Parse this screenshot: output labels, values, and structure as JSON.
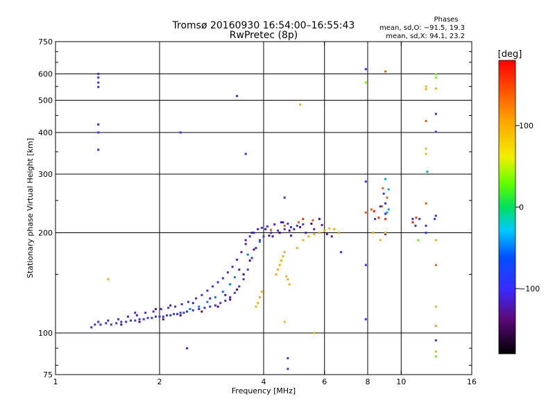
{
  "chart_data": {
    "type": "scatter",
    "title": "Tromsø 20160930 16:54:00–16:55:43",
    "subtitle": "RwPretec (8p)",
    "xlabel": "Frequency [MHz]",
    "ylabel": "Stationary phase Virtual Height [km]",
    "x_scale": "log2",
    "y_scale": "log",
    "xlim": [
      1,
      16
    ],
    "ylim": [
      75,
      750
    ],
    "x_ticks": [
      {
        "value": 1,
        "label": "1"
      },
      {
        "value": 2,
        "label": "2"
      },
      {
        "value": 4,
        "label": "4"
      },
      {
        "value": 6,
        "label": "6"
      },
      {
        "value": 8,
        "label": "8"
      },
      {
        "value": 10,
        "label": "10"
      },
      {
        "value": 16,
        "label": "16"
      }
    ],
    "y_ticks": [
      {
        "value": 75,
        "label": "75"
      },
      {
        "value": 100,
        "label": "100"
      },
      {
        "value": 200,
        "label": "200"
      },
      {
        "value": 300,
        "label": "300"
      },
      {
        "value": 400,
        "label": "400"
      },
      {
        "value": 500,
        "label": "500"
      },
      {
        "value": 600,
        "label": "600"
      },
      {
        "value": 750,
        "label": "750"
      }
    ],
    "x_gridlines": [
      2,
      4,
      6,
      8,
      10
    ],
    "y_gridlines": [
      100,
      200,
      300,
      400,
      500,
      600
    ],
    "grid": true,
    "stats": {
      "heading": "Phases",
      "line_o": "mean, sd,O: −91.5, 19.3",
      "line_x": "mean, sd,X:  94.1, 23.2"
    },
    "colorbar": {
      "label": "[deg]",
      "range": [
        -180,
        180
      ],
      "ticks": [
        {
          "value": 100,
          "label": "100"
        },
        {
          "value": 0,
          "label": "0"
        },
        {
          "value": -100,
          "label": "−100"
        }
      ]
    },
    "series": [
      {
        "name": "lowband_O",
        "phase": -95,
        "points": [
          [
            1.27,
            104
          ],
          [
            1.3,
            106
          ],
          [
            1.35,
            106
          ],
          [
            1.4,
            107
          ],
          [
            1.45,
            106
          ],
          [
            1.5,
            107
          ],
          [
            1.55,
            108
          ],
          [
            1.6,
            108
          ],
          [
            1.65,
            109
          ],
          [
            1.7,
            109
          ],
          [
            1.75,
            110
          ],
          [
            1.8,
            110
          ],
          [
            1.85,
            111
          ],
          [
            1.9,
            111
          ],
          [
            1.95,
            112
          ],
          [
            2.0,
            112
          ],
          [
            2.05,
            112
          ],
          [
            2.1,
            113
          ],
          [
            2.15,
            113
          ],
          [
            2.2,
            114
          ],
          [
            2.25,
            114
          ],
          [
            2.3,
            115
          ],
          [
            2.35,
            115
          ],
          [
            2.4,
            116
          ],
          [
            2.5,
            117
          ],
          [
            2.6,
            118
          ],
          [
            2.7,
            119
          ],
          [
            2.8,
            120
          ],
          [
            2.9,
            121
          ],
          [
            3.0,
            123
          ],
          [
            3.1,
            125
          ],
          [
            3.2,
            128
          ],
          [
            3.3,
            132
          ],
          [
            3.4,
            138
          ],
          [
            3.5,
            145
          ],
          [
            3.6,
            155
          ],
          [
            3.7,
            168
          ],
          [
            3.8,
            180
          ],
          [
            3.9,
            190
          ],
          [
            4.0,
            195
          ],
          [
            4.2,
            200
          ],
          [
            4.4,
            203
          ],
          [
            4.6,
            205
          ],
          [
            4.8,
            208
          ],
          [
            5.0,
            210
          ],
          [
            5.2,
            212
          ]
        ]
      },
      {
        "name": "lowband_O_spread",
        "phase": -105,
        "points": [
          [
            1.33,
            108
          ],
          [
            1.42,
            109
          ],
          [
            1.52,
            110
          ],
          [
            1.62,
            112
          ],
          [
            1.72,
            113
          ],
          [
            1.82,
            115
          ],
          [
            1.92,
            116
          ],
          [
            2.02,
            118
          ],
          [
            2.12,
            119
          ],
          [
            2.22,
            120
          ],
          [
            2.32,
            122
          ],
          [
            2.42,
            124
          ],
          [
            2.55,
            127
          ],
          [
            2.65,
            130
          ],
          [
            2.75,
            134
          ],
          [
            2.85,
            138
          ],
          [
            2.95,
            142
          ],
          [
            3.05,
            146
          ],
          [
            3.15,
            152
          ],
          [
            3.25,
            158
          ],
          [
            3.35,
            166
          ],
          [
            3.45,
            175
          ],
          [
            3.55,
            185
          ],
          [
            3.65,
            195
          ],
          [
            3.75,
            200
          ],
          [
            3.85,
            205
          ],
          [
            3.95,
            207
          ],
          [
            4.1,
            209
          ],
          [
            4.3,
            212
          ],
          [
            4.5,
            215
          ],
          [
            4.7,
            213
          ],
          [
            4.9,
            205
          ]
        ]
      },
      {
        "name": "lowband_dark",
        "phase": -140,
        "points": [
          [
            1.55,
            106
          ],
          [
            1.75,
            108
          ],
          [
            2.05,
            110
          ],
          [
            2.3,
            113
          ],
          [
            2.65,
            116
          ],
          [
            2.95,
            120
          ],
          [
            3.2,
            126
          ],
          [
            3.35,
            135
          ],
          [
            3.5,
            150
          ],
          [
            3.65,
            165
          ],
          [
            3.75,
            178
          ],
          [
            4.15,
            196
          ],
          [
            4.45,
            200
          ],
          [
            4.75,
            203
          ],
          [
            5.1,
            208
          ],
          [
            5.5,
            213
          ],
          [
            5.8,
            220
          ]
        ]
      },
      {
        "name": "lowband_cyan",
        "phase": -50,
        "points": [
          [
            2.45,
            118
          ],
          [
            2.6,
            120
          ],
          [
            2.75,
            124
          ],
          [
            2.9,
            128
          ],
          [
            3.05,
            133
          ],
          [
            3.2,
            140
          ],
          [
            3.3,
            147
          ],
          [
            3.6,
            172
          ],
          [
            3.9,
            188
          ]
        ]
      },
      {
        "name": "xmode_yellow",
        "phase": 100,
        "points": [
          [
            3.8,
            120
          ],
          [
            3.85,
            123
          ],
          [
            3.9,
            128
          ],
          [
            3.95,
            133
          ],
          [
            4.35,
            150
          ],
          [
            4.4,
            155
          ],
          [
            4.45,
            160
          ],
          [
            4.5,
            165
          ],
          [
            4.55,
            170
          ],
          [
            4.6,
            175
          ],
          [
            4.65,
            148
          ],
          [
            4.7,
            145
          ],
          [
            4.75,
            140
          ],
          [
            5.0,
            180
          ],
          [
            5.2,
            190
          ],
          [
            5.4,
            195
          ],
          [
            5.6,
            198
          ],
          [
            5.8,
            200
          ],
          [
            6.0,
            203
          ],
          [
            6.2,
            206
          ],
          [
            6.4,
            205
          ],
          [
            6.6,
            200
          ],
          [
            1.42,
            145
          ],
          [
            5.1,
            485
          ],
          [
            5.6,
            100
          ],
          [
            4.6,
            108
          ]
        ]
      },
      {
        "name": "mixed_orange",
        "phase": 140,
        "points": [
          [
            4.2,
            204
          ],
          [
            4.6,
            210
          ],
          [
            5.05,
            215
          ],
          [
            5.55,
            218
          ],
          [
            7.9,
            230
          ],
          [
            8.2,
            235
          ],
          [
            8.8,
            240
          ],
          [
            9.1,
            255
          ],
          [
            8.85,
            272
          ],
          [
            11.8,
            433
          ],
          [
            11.8,
            245
          ],
          [
            12.6,
            160
          ],
          [
            9.0,
            610
          ]
        ]
      },
      {
        "name": "red_scatter",
        "phase": 160,
        "points": [
          [
            5.2,
            220
          ],
          [
            8.35,
            232
          ],
          [
            8.6,
            222
          ],
          [
            9.0,
            220
          ],
          [
            10.8,
            215
          ],
          [
            11.05,
            222
          ]
        ]
      },
      {
        "name": "scattered_blue",
        "phase": -90,
        "points": [
          [
            1.33,
            600
          ],
          [
            1.33,
            585
          ],
          [
            1.33,
            565
          ],
          [
            1.33,
            548
          ],
          [
            1.33,
            423
          ],
          [
            1.33,
            400
          ],
          [
            1.33,
            355
          ],
          [
            2.3,
            400
          ],
          [
            3.35,
            515
          ],
          [
            3.55,
            345
          ],
          [
            4.7,
            84
          ],
          [
            4.7,
            78
          ],
          [
            4.6,
            255
          ],
          [
            7.9,
            620
          ],
          [
            7.9,
            285
          ],
          [
            7.9,
            160
          ],
          [
            7.9,
            110
          ],
          [
            8.4,
            220
          ],
          [
            8.7,
            240
          ],
          [
            8.9,
            262
          ],
          [
            9.0,
            245
          ],
          [
            9.0,
            228
          ],
          [
            9.0,
            198
          ],
          [
            10.8,
            220
          ],
          [
            11.0,
            210
          ],
          [
            11.3,
            220
          ],
          [
            12.5,
            220
          ],
          [
            12.6,
            225
          ],
          [
            12.6,
            402
          ],
          [
            12.6,
            455
          ],
          [
            12.6,
            95
          ],
          [
            12.6,
            105
          ],
          [
            11.8,
            210
          ],
          [
            11.8,
            200
          ],
          [
            6.7,
            175
          ]
        ]
      },
      {
        "name": "scattered_cyan",
        "phase": -40,
        "points": [
          [
            9.2,
            270
          ],
          [
            9.0,
            290
          ],
          [
            9.2,
            235
          ],
          [
            9.1,
            230
          ],
          [
            11.9,
            305
          ]
        ]
      },
      {
        "name": "scattered_green",
        "phase": 30,
        "points": [
          [
            7.9,
            565
          ],
          [
            12.6,
            598
          ],
          [
            12.6,
            585
          ],
          [
            11.2,
            190
          ],
          [
            12.6,
            85
          ]
        ]
      },
      {
        "name": "scattered_yellow",
        "phase": 95,
        "points": [
          [
            11.8,
            550
          ],
          [
            11.8,
            540
          ],
          [
            11.8,
            358
          ],
          [
            11.8,
            345
          ],
          [
            12.6,
            542
          ],
          [
            12.6,
            190
          ],
          [
            12.6,
            120
          ],
          [
            12.6,
            105
          ],
          [
            12.6,
            88
          ],
          [
            9.0,
            200
          ],
          [
            8.7,
            190
          ],
          [
            8.3,
            200
          ]
        ]
      },
      {
        "name": "scattered_misc",
        "phase": -120,
        "points": [
          [
            2.4,
            90
          ],
          [
            1.7,
            115
          ],
          [
            1.95,
            118
          ],
          [
            2.15,
            121
          ],
          [
            2.5,
            123
          ],
          [
            2.8,
            127
          ],
          [
            3.1,
            130
          ],
          [
            3.4,
            155
          ],
          [
            3.55,
            190
          ],
          [
            3.7,
            200
          ],
          [
            4.05,
            205
          ],
          [
            4.25,
            195
          ],
          [
            4.55,
            215
          ],
          [
            4.8,
            196
          ],
          [
            5.3,
            200
          ],
          [
            5.6,
            205
          ],
          [
            5.9,
            211
          ],
          [
            6.1,
            198
          ],
          [
            6.3,
            195
          ]
        ]
      }
    ]
  }
}
